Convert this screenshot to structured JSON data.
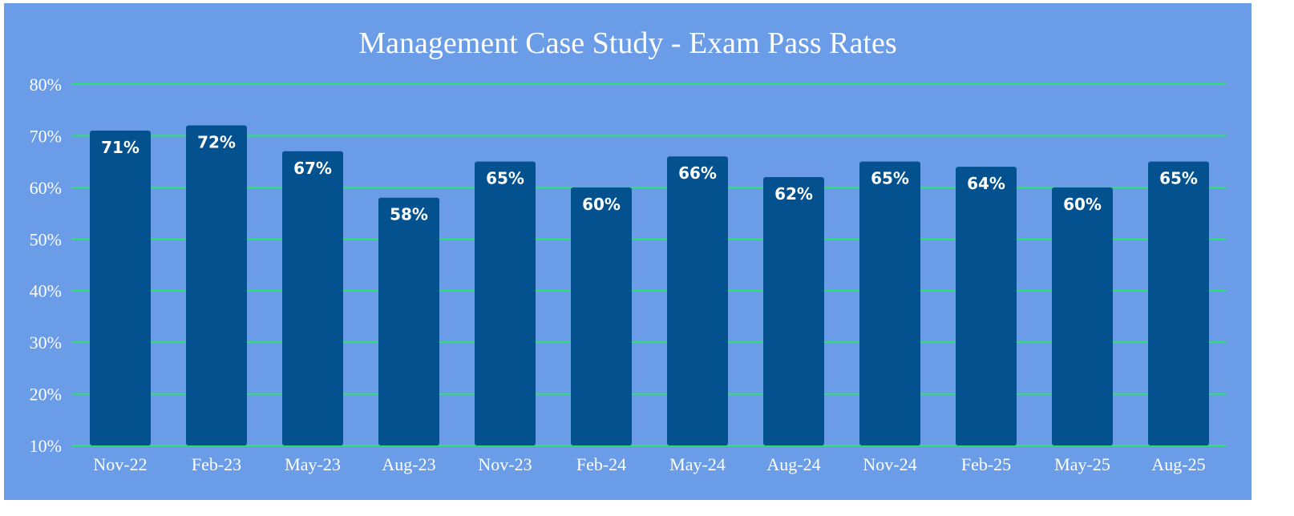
{
  "chart_data": {
    "type": "bar",
    "title": "Management Case Study - Exam Pass Rates",
    "xlabel": "",
    "ylabel": "",
    "categories": [
      "Nov-22",
      "Feb-23",
      "May-23",
      "Aug-23",
      "Nov-23",
      "Feb-24",
      "May-24",
      "Aug-24",
      "Nov-24",
      "Feb-25",
      "May-25",
      "Aug-25"
    ],
    "values": [
      71,
      72,
      67,
      58,
      65,
      60,
      66,
      62,
      65,
      64,
      60,
      65
    ],
    "data_labels": [
      "71%",
      "72%",
      "67%",
      "58%",
      "65%",
      "60%",
      "66%",
      "62%",
      "65%",
      "64%",
      "60%",
      "65%"
    ],
    "ylim": [
      10,
      80
    ],
    "y_ticks": [
      10,
      20,
      30,
      40,
      50,
      60,
      70,
      80
    ],
    "y_tick_labels": [
      "10%",
      "20%",
      "30%",
      "40%",
      "50%",
      "60%",
      "70%",
      "80%"
    ],
    "grid": true,
    "legend": "none",
    "colors": {
      "background": "#6a9ce8",
      "bar": "#03528f",
      "grid": "#2ee36a",
      "text": "#ffffff"
    }
  }
}
